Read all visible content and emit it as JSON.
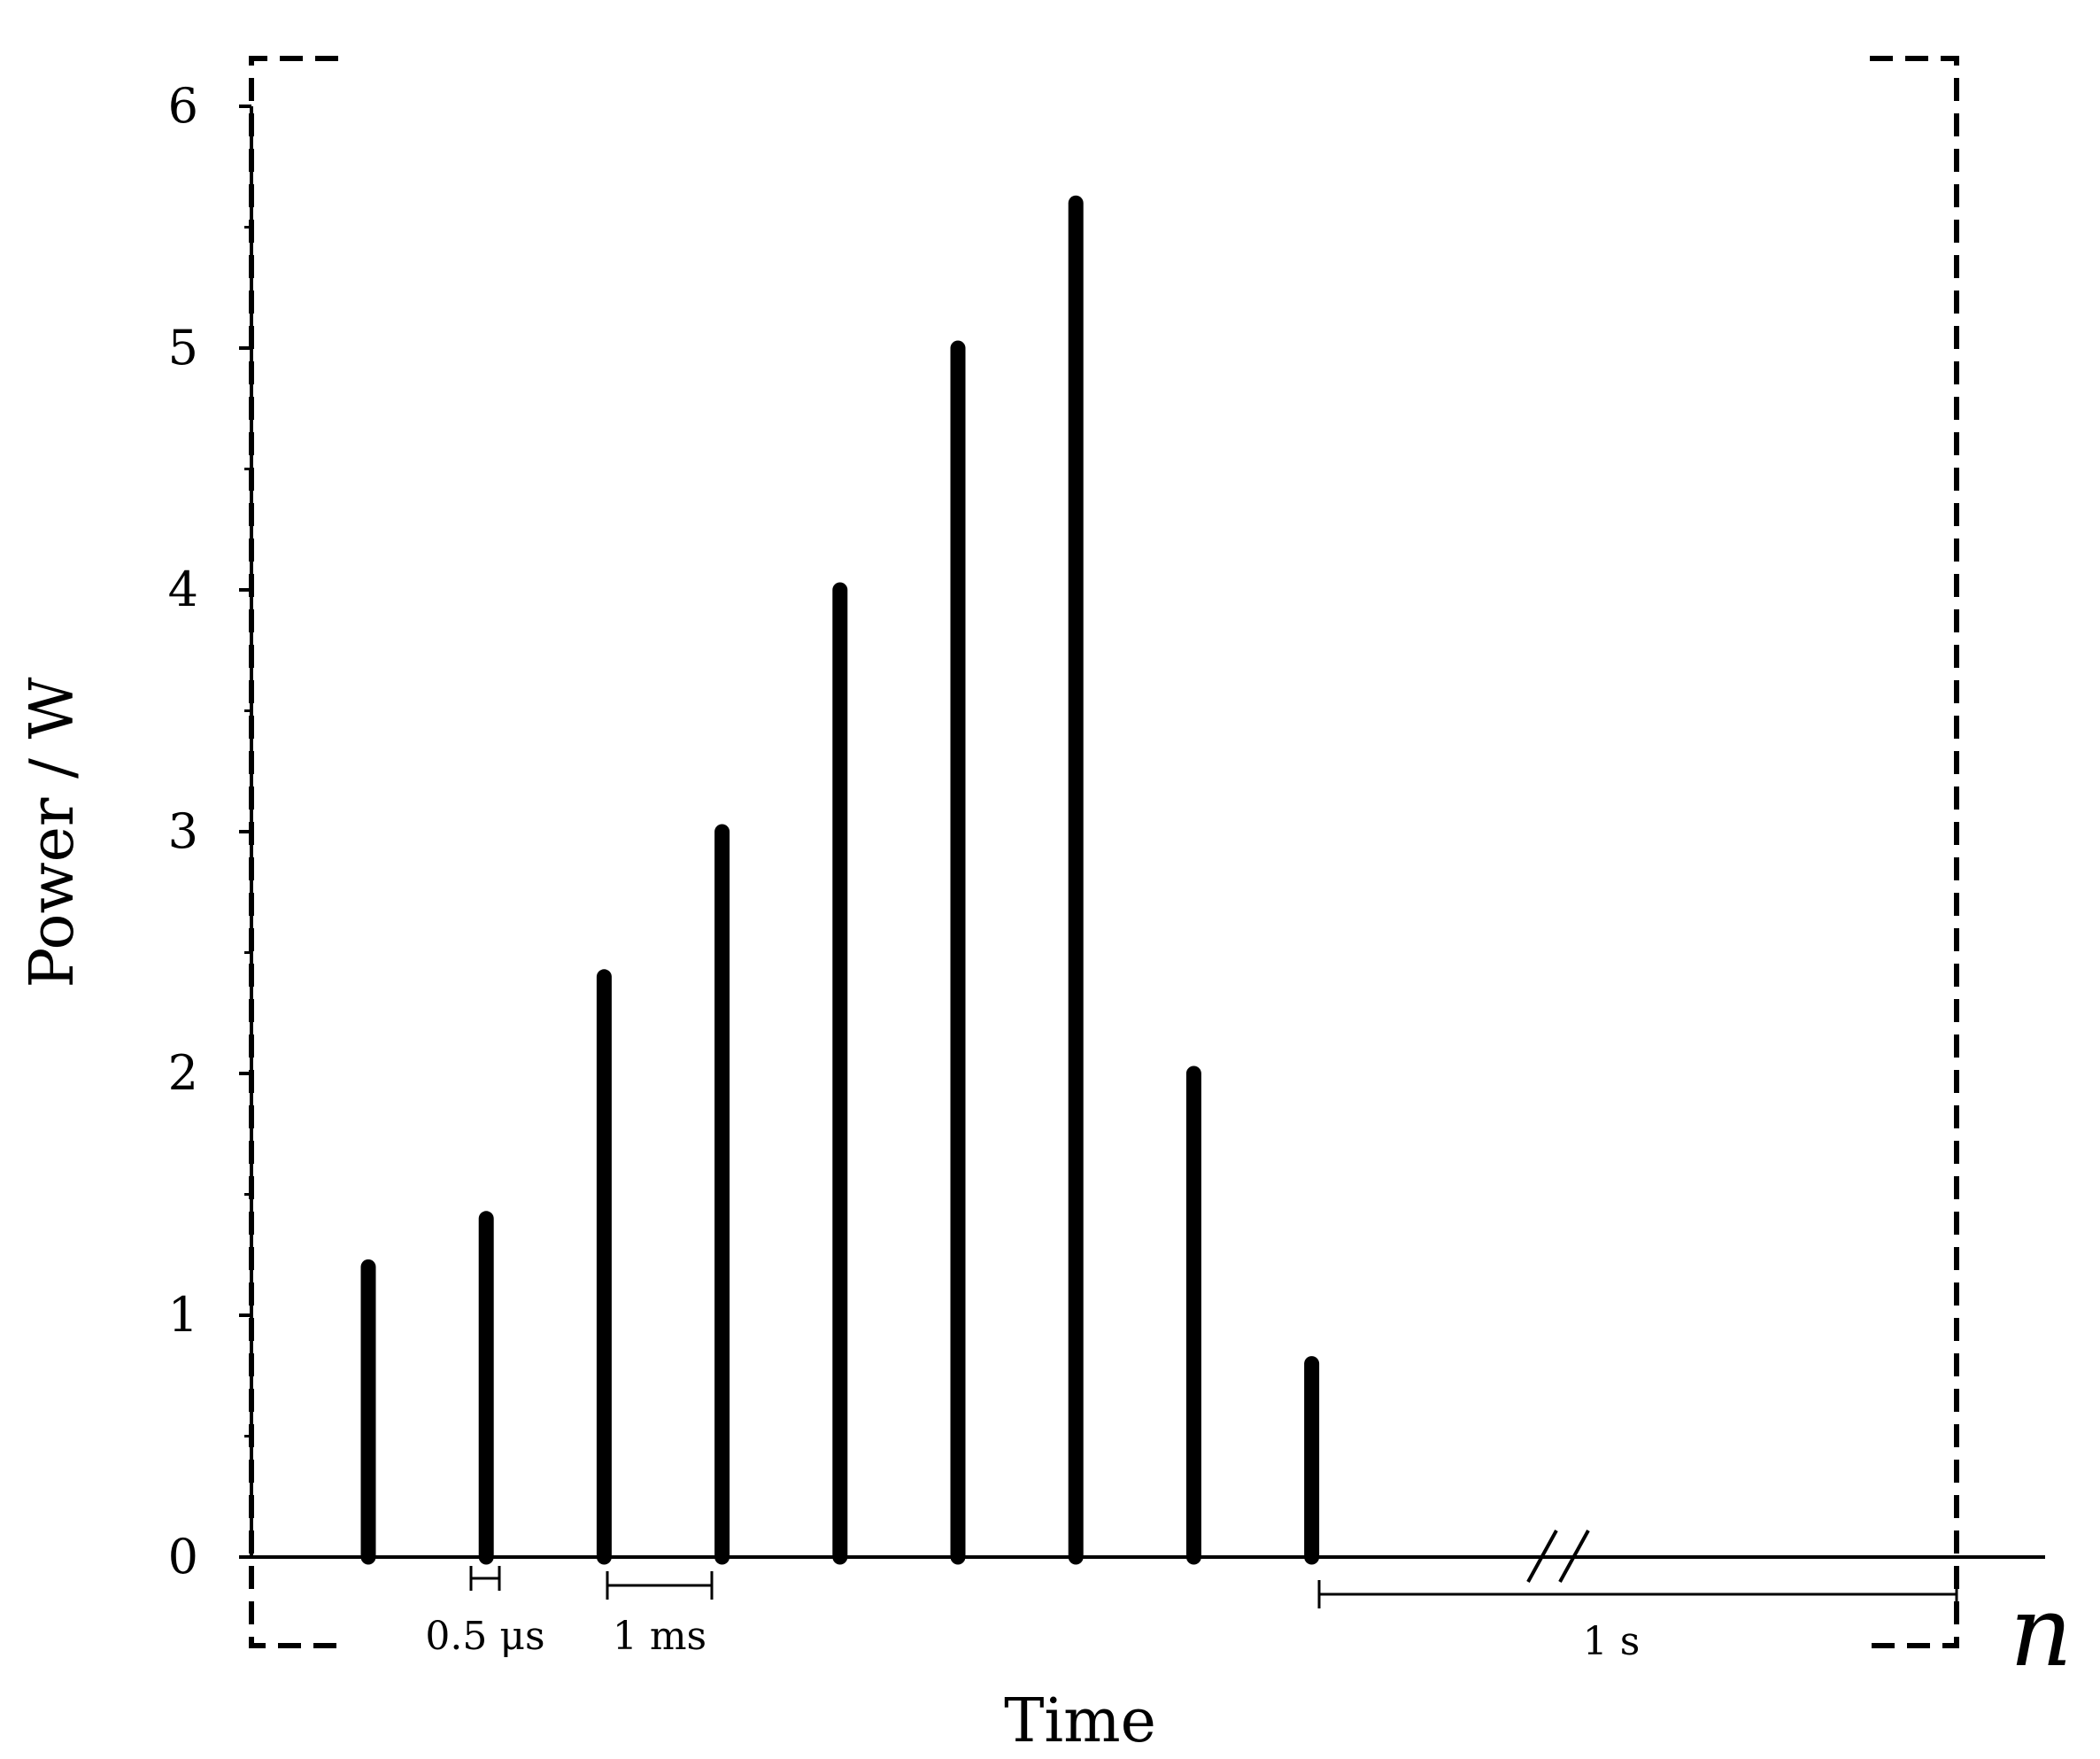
{
  "chart_data": {
    "type": "bar",
    "title": "",
    "xlabel": "Time",
    "ylabel": "Power / W",
    "ylim": [
      0,
      6
    ],
    "y_ticks": [
      0,
      1,
      2,
      3,
      4,
      5,
      6
    ],
    "y_tick_labels": [
      "0",
      "1",
      "2",
      "3",
      "4",
      "5",
      "6"
    ],
    "y_minor_ticks": true,
    "grid": false,
    "legend": "none",
    "pulse_count": 9,
    "values": [
      1.2,
      1.4,
      2.4,
      3.0,
      4.0,
      5.0,
      5.6,
      2.0,
      0.8
    ],
    "repeat_label": "n",
    "annotations": [
      {
        "label": "0.5 μs",
        "meaning": "pulse width"
      },
      {
        "label": "1 ms",
        "meaning": "pulse spacing"
      },
      {
        "label": "1 s",
        "meaning": "gap before repetition"
      }
    ],
    "axis_break": true,
    "colors": {
      "bars": "#000000",
      "axes": "#000000"
    }
  }
}
